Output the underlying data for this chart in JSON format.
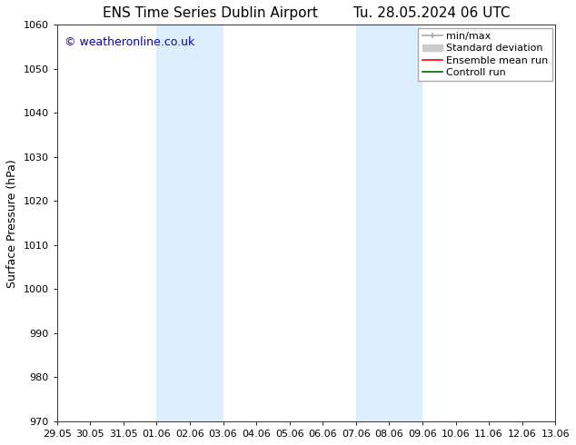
{
  "title_left": "ENS Time Series Dublin Airport",
  "title_right": "Tu. 28.05.2024 06 UTC",
  "ylabel": "Surface Pressure (hPa)",
  "background_color": "#ffffff",
  "plot_bg_color": "#ffffff",
  "ylim": [
    970,
    1060
  ],
  "yticks": [
    970,
    980,
    990,
    1000,
    1010,
    1020,
    1030,
    1040,
    1050,
    1060
  ],
  "xtick_labels": [
    "29.05",
    "30.05",
    "31.05",
    "01.06",
    "02.06",
    "03.06",
    "04.06",
    "05.06",
    "06.06",
    "07.06",
    "08.06",
    "09.06",
    "10.06",
    "11.06",
    "12.06",
    "13.06"
  ],
  "shaded_color": "#ddeeff",
  "watermark_text": "© weatheronline.co.uk",
  "watermark_color": "#0000cc",
  "title_fontsize": 11,
  "tick_fontsize": 8,
  "ylabel_fontsize": 9,
  "watermark_fontsize": 9,
  "legend_fontsize": 8
}
